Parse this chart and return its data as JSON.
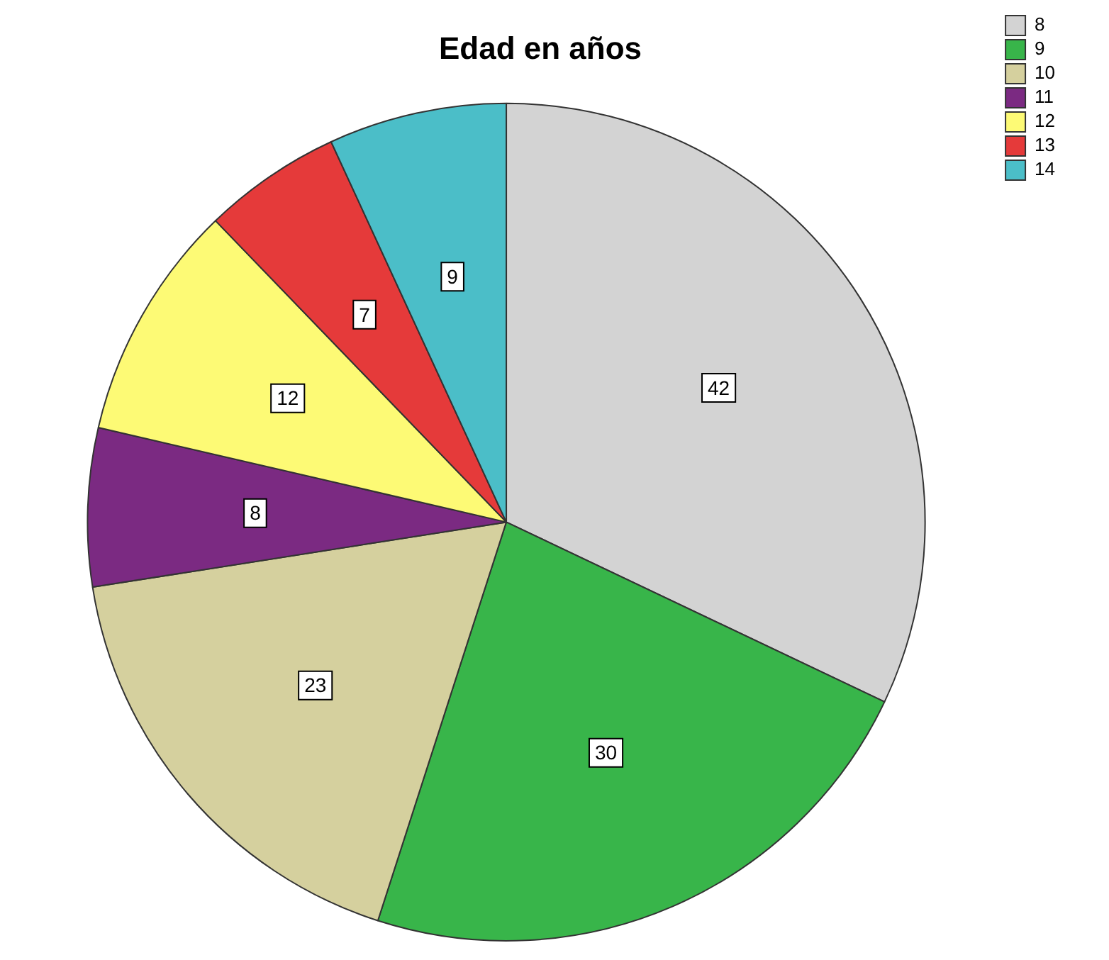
{
  "chart_data": {
    "type": "pie",
    "title": "Edad en años",
    "categories": [
      "8",
      "9",
      "10",
      "11",
      "12",
      "13",
      "14"
    ],
    "values": [
      42,
      30,
      23,
      8,
      12,
      7,
      9
    ],
    "colors": [
      "#d3d3d3",
      "#38b54a",
      "#d5d09e",
      "#7b2a82",
      "#fdfa75",
      "#e53a3a",
      "#4bbec8"
    ],
    "data_labels": true,
    "legend": "top right"
  }
}
